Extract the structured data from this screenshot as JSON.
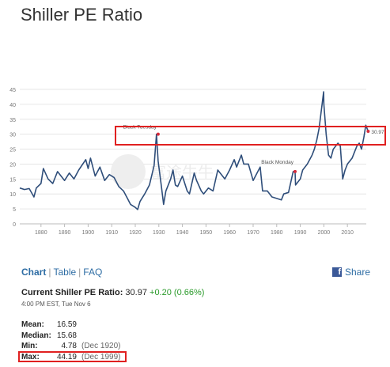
{
  "title": "Shiller PE Ratio",
  "chart_data": {
    "type": "line",
    "title": "",
    "xlabel": "",
    "ylabel": "",
    "xlim": [
      1871,
      2018
    ],
    "ylim": [
      0,
      45
    ],
    "yticks": [
      0,
      5,
      10,
      15,
      20,
      25,
      30,
      35,
      40,
      45
    ],
    "xticks": [
      1880,
      1890,
      1900,
      1910,
      1920,
      1930,
      1940,
      1950,
      1960,
      1970,
      1980,
      1990,
      2000,
      2010
    ],
    "grid": true,
    "line_color": "#2f4e7a",
    "series": [
      {
        "x": [
          1871,
          1873,
          1875,
          1877,
          1878,
          1880,
          1881,
          1883,
          1885,
          1887,
          1890,
          1892,
          1894,
          1896,
          1899,
          1900,
          1901,
          1903,
          1905,
          1907,
          1909,
          1911,
          1913,
          1915,
          1917,
          1918,
          1920,
          1921,
          1922,
          1924,
          1926,
          1928,
          1929,
          1929.7,
          1931,
          1932,
          1933,
          1935,
          1936,
          1937,
          1938,
          1940,
          1942,
          1943,
          1945,
          1946,
          1948,
          1949,
          1951,
          1953,
          1955,
          1956,
          1958,
          1960,
          1962,
          1963,
          1965,
          1966,
          1968,
          1970,
          1972,
          1973,
          1974,
          1976,
          1978,
          1980,
          1982,
          1983,
          1985,
          1987,
          1987.8,
          1988,
          1990,
          1991,
          1993,
          1995,
          1996,
          1997,
          1998,
          1999.9,
          2000,
          2001,
          2002,
          2003,
          2004,
          2006,
          2007,
          2008,
          2009,
          2010,
          2011,
          2012,
          2013,
          2014,
          2015,
          2016,
          2017,
          2017.8,
          2018.8
        ],
        "y": [
          12,
          11.5,
          11.8,
          9,
          12,
          13.5,
          18.5,
          15,
          13.5,
          17.5,
          14.5,
          17,
          15,
          18,
          21.5,
          18.5,
          22,
          16,
          19,
          14.5,
          16.5,
          15.5,
          12.5,
          11,
          8,
          6.5,
          5.5,
          4.78,
          7.5,
          10,
          13,
          19.5,
          30,
          21,
          13,
          6.5,
          11,
          15,
          18,
          13,
          12.5,
          16,
          11,
          10,
          17,
          14.5,
          11,
          10,
          12,
          11,
          18,
          17,
          15,
          18,
          21.5,
          19,
          23,
          20,
          20,
          14.5,
          17.5,
          19,
          11,
          11,
          9,
          8.5,
          8,
          10,
          10.5,
          17.5,
          17.5,
          13,
          15,
          18,
          20,
          23,
          25,
          28,
          32,
          44.19,
          40,
          30,
          23,
          22,
          25,
          27,
          26,
          15,
          18,
          20,
          21,
          22,
          24,
          26,
          27,
          25,
          29,
          33,
          30.97
        ]
      }
    ],
    "annotations": [
      {
        "label": "Black Tuesday",
        "x": 1929.7,
        "y": 30
      },
      {
        "label": "Black Monday",
        "x": 1987.8,
        "y": 17.5
      },
      {
        "label": "30.97",
        "x": 2018.8,
        "y": 30.97
      }
    ],
    "watermark": "富途牛牛"
  },
  "tabs": {
    "chart": "Chart",
    "separator1": "|",
    "table": "Table",
    "separator2": "|",
    "faq": "FAQ"
  },
  "share": {
    "icon": "facebook-icon",
    "label": "Share"
  },
  "current": {
    "label": "Current Shiller PE Ratio:",
    "value": "30.97",
    "change": "+0.20 (0.66%)",
    "timestamp": "4:00 PM EST, Tue Nov 6"
  },
  "stats": [
    {
      "key": "Mean:",
      "value": "16.59",
      "date": ""
    },
    {
      "key": "Median:",
      "value": "15.68",
      "date": ""
    },
    {
      "key": "Min:",
      "value": "4.78",
      "date": "(Dec 1920)"
    },
    {
      "key": "Max:",
      "value": "44.19",
      "date": "(Dec 1999)"
    }
  ],
  "colors": {
    "accent": "#2e6da4",
    "positive": "#2a9a2a",
    "highlight_box": "#e02020",
    "line": "#2f4e7a",
    "marker": "#d62a3a"
  }
}
